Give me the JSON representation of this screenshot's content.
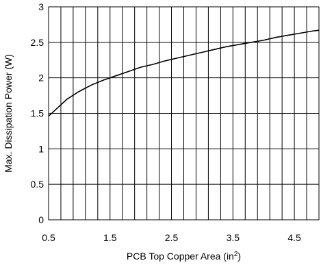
{
  "chart_data": {
    "type": "line",
    "title": "",
    "xlabel": "PCB Top Copper Area (in",
    "xlabel_superscript": "2",
    "xlabel_suffix": ")",
    "ylabel": "Max. Dissipation Power (W)",
    "xlim": [
      0.5,
      4.9
    ],
    "ylim": [
      0,
      3
    ],
    "x_ticks": [
      0.5,
      1.5,
      2.5,
      3.5,
      4.5
    ],
    "x_tick_labels": [
      "0.5",
      "1.5",
      "2.5",
      "3.5",
      "4.5"
    ],
    "y_ticks": [
      0,
      0.5,
      1,
      1.5,
      2,
      2.5,
      3
    ],
    "y_tick_labels": [
      "0",
      "0.5",
      "1",
      "1.5",
      "2",
      "2.5",
      "3"
    ],
    "grid": true,
    "series": [
      {
        "color": "#000000",
        "x": [
          0.5,
          0.65,
          0.8,
          1.0,
          1.2,
          1.4,
          1.6,
          1.8,
          2.0,
          2.2,
          2.4,
          2.6,
          2.8,
          3.0,
          3.2,
          3.4,
          3.6,
          3.8,
          4.0,
          4.2,
          4.4,
          4.6,
          4.8,
          4.9
        ],
        "y": [
          1.46,
          1.58,
          1.7,
          1.81,
          1.9,
          1.97,
          2.03,
          2.09,
          2.15,
          2.19,
          2.24,
          2.28,
          2.32,
          2.36,
          2.4,
          2.44,
          2.47,
          2.5,
          2.53,
          2.57,
          2.6,
          2.63,
          2.66,
          2.67
        ]
      }
    ]
  }
}
